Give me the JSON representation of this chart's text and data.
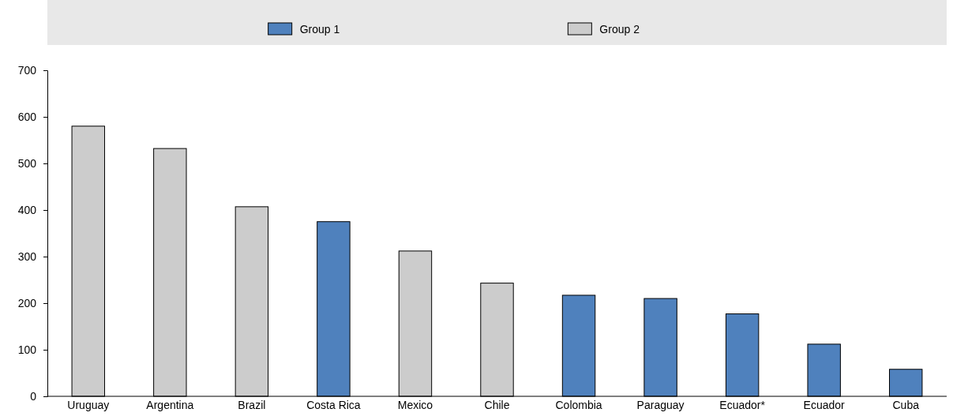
{
  "chart_data": {
    "type": "bar",
    "legend": "top",
    "categories": [
      "Uruguay",
      "Argentina",
      "Brazil",
      "Costa Rica",
      "Mexico",
      "Chile",
      "Colombia",
      "Paraguay",
      "Ecuador*",
      "Ecuador",
      "Cuba"
    ],
    "series": [
      {
        "name": "Group 1",
        "color": "#4f81bd",
        "values": [
          null,
          null,
          null,
          375,
          null,
          null,
          217,
          210,
          177,
          112,
          58
        ]
      },
      {
        "name": "Group 2",
        "color": "#cccccc",
        "values": [
          580,
          532,
          407,
          null,
          312,
          243,
          null,
          null,
          null,
          null,
          null
        ]
      }
    ],
    "ylim": [
      0,
      700
    ],
    "yticks": [
      0,
      100,
      200,
      300,
      400,
      500,
      600,
      700
    ]
  }
}
